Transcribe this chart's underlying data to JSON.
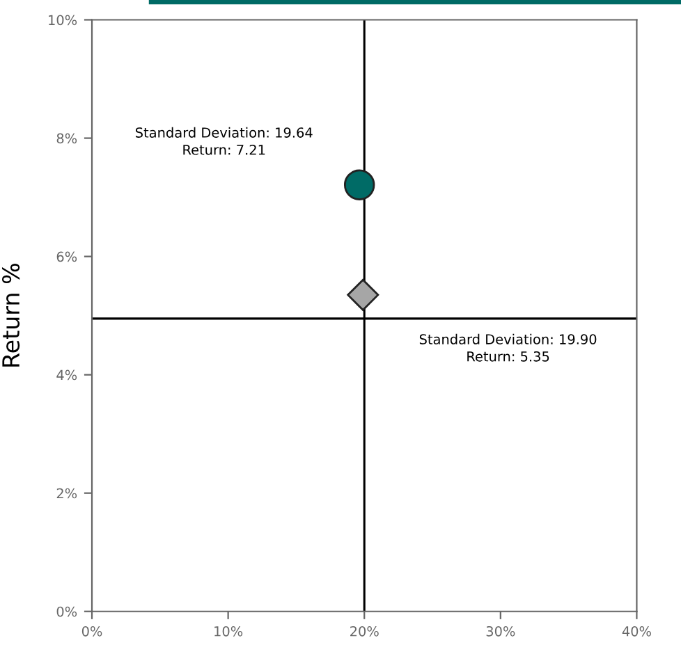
{
  "chart_data": {
    "type": "scatter",
    "ylabel": "Return %",
    "series": [
      {
        "color": "#006b66",
        "marker": "circle",
        "x": [
          19.64
        ],
        "values": [
          7.21
        ]
      },
      {
        "color": "#a6a6a6",
        "marker": "diamond",
        "x": [
          19.9
        ],
        "values": [
          5.35
        ]
      }
    ],
    "annotations": [
      "Standard Deviation: 19.64\nReturn: 7.21",
      "Standard Deviation: 19.90\nReturn: 5.35"
    ],
    "ref_lines": [
      {
        "axis": "x",
        "value": 20,
        "color": "#000000"
      },
      {
        "axis": "y",
        "value": 4.95,
        "color": "#000000"
      }
    ],
    "xlim": [
      0,
      40
    ],
    "ylim": [
      0,
      10
    ],
    "xticks": [
      {
        "value": 0,
        "label": "0%"
      },
      {
        "value": 10,
        "label": "10%"
      },
      {
        "value": 20,
        "label": "20%"
      },
      {
        "value": 30,
        "label": "30%"
      },
      {
        "value": 40,
        "label": "40%"
      }
    ],
    "yticks": [
      {
        "value": 0,
        "label": "0%"
      },
      {
        "value": 2,
        "label": "2%"
      },
      {
        "value": 4,
        "label": "4%"
      },
      {
        "value": 6,
        "label": "6%"
      },
      {
        "value": 8,
        "label": "8%"
      },
      {
        "value": 10,
        "label": "10%"
      }
    ],
    "grid": false,
    "legend": false
  }
}
